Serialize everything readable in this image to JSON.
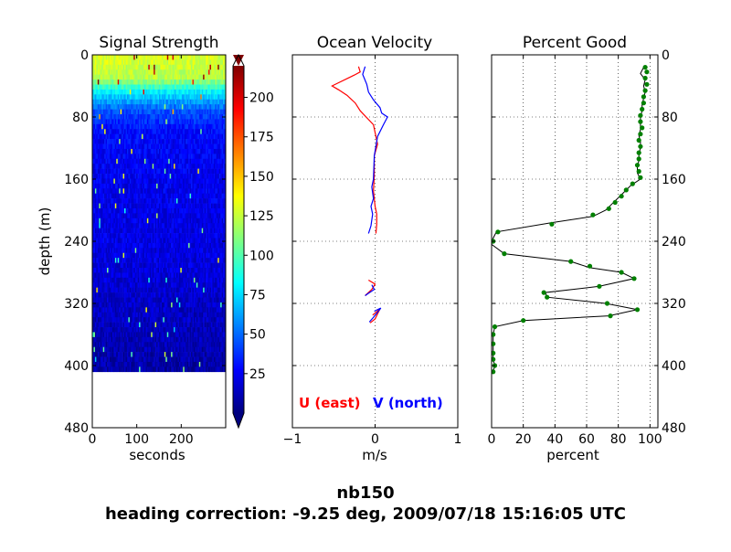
{
  "suptitle": {
    "line1": "nb150",
    "line2": "heading correction: -9.25 deg, 2009/07/18 15:16:05 UTC"
  },
  "chart_data": [
    {
      "type": "heatmap",
      "title": "Signal Strength",
      "xlabel": "seconds",
      "ylabel": "depth (m)",
      "xlim": [
        0,
        300
      ],
      "ylim": [
        480,
        0
      ],
      "xticks": [
        "0",
        "100",
        "200"
      ],
      "yticks": [
        "0",
        "80",
        "160",
        "240",
        "320",
        "400",
        "480"
      ],
      "data_depth_range": [
        0,
        408
      ],
      "colorbar": {
        "ticks": [
          "25",
          "50",
          "75",
          "100",
          "125",
          "150",
          "175",
          "200"
        ],
        "range": [
          0,
          220
        ],
        "colormap": "jet",
        "colors": [
          "#00007f",
          "#0000ff",
          "#0080ff",
          "#00ffff",
          "#80ff80",
          "#ffff00",
          "#ff8000",
          "#ff0000",
          "#7f0000"
        ]
      },
      "depth_profile": [
        {
          "depth": 8,
          "value": 128
        },
        {
          "depth": 30,
          "value": 122
        },
        {
          "depth": 48,
          "value": 80
        },
        {
          "depth": 72,
          "value": 45
        },
        {
          "depth": 100,
          "value": 28
        },
        {
          "depth": 160,
          "value": 24
        },
        {
          "depth": 260,
          "value": 21
        },
        {
          "depth": 340,
          "value": 14
        },
        {
          "depth": 408,
          "value": 8
        }
      ]
    },
    {
      "type": "line",
      "title": "Ocean Velocity",
      "xlabel": "m/s",
      "xlim": [
        -1,
        1
      ],
      "ylim": [
        480,
        0
      ],
      "xticks": [
        "−1",
        "0",
        "1"
      ],
      "grid": true,
      "legend_text": [
        {
          "label": "U (east)",
          "color": "#ff0000"
        },
        {
          "label": "V (north)",
          "color": "#0000ff"
        }
      ],
      "series": [
        {
          "name": "U (east)",
          "color": "#ff0000",
          "segments": [
            [
              [
                -0.2,
                15
              ],
              [
                -0.18,
                22
              ],
              [
                -0.25,
                26
              ],
              [
                -0.52,
                40
              ],
              [
                -0.44,
                45
              ],
              [
                -0.34,
                52
              ],
              [
                -0.24,
                62
              ],
              [
                -0.18,
                72
              ],
              [
                -0.02,
                90
              ],
              [
                0.01,
                105
              ],
              [
                0.03,
                115
              ],
              [
                -0.01,
                130
              ],
              [
                -0.01,
                155
              ],
              [
                -0.02,
                175
              ],
              [
                0.0,
                195
              ],
              [
                0.02,
                205
              ],
              [
                0.02,
                218
              ],
              [
                0.01,
                230
              ]
            ],
            [
              [
                -0.08,
                290
              ],
              [
                0.0,
                295
              ],
              [
                -0.04,
                302
              ],
              [
                -0.12,
                310
              ]
            ],
            [
              [
                -0.03,
                335
              ],
              [
                0.06,
                327
              ],
              [
                0.0,
                340
              ],
              [
                -0.06,
                345
              ]
            ]
          ]
        },
        {
          "name": "V (north)",
          "color": "#0000ff",
          "segments": [
            [
              [
                -0.12,
                15
              ],
              [
                -0.15,
                25
              ],
              [
                -0.1,
                38
              ],
              [
                -0.08,
                48
              ],
              [
                -0.02,
                58
              ],
              [
                0.06,
                68
              ],
              [
                0.08,
                75
              ],
              [
                0.15,
                80
              ],
              [
                0.1,
                90
              ],
              [
                0.03,
                105
              ],
              [
                -0.01,
                130
              ],
              [
                -0.02,
                160
              ],
              [
                -0.04,
                170
              ],
              [
                -0.02,
                185
              ],
              [
                -0.05,
                195
              ],
              [
                -0.03,
                205
              ],
              [
                -0.05,
                220
              ],
              [
                -0.08,
                230
              ]
            ],
            [
              [
                -0.04,
                296
              ],
              [
                -0.01,
                302
              ],
              [
                -0.08,
                307
              ],
              [
                -0.12,
                310
              ]
            ],
            [
              [
                -0.01,
                330
              ],
              [
                0.07,
                326
              ],
              [
                -0.02,
                338
              ],
              [
                -0.07,
                344
              ]
            ]
          ]
        }
      ]
    },
    {
      "type": "line",
      "title": "Percent Good",
      "xlabel": "percent",
      "xlim": [
        0,
        105
      ],
      "ylim": [
        480,
        0
      ],
      "xticks": [
        "0",
        "20",
        "40",
        "60",
        "80",
        "100"
      ],
      "yticks": [
        "0",
        "80",
        "160",
        "240",
        "320",
        "400",
        "480"
      ],
      "grid": true,
      "series": [
        {
          "name": "",
          "color": "#000000",
          "points": [
            [
              96,
              16
            ],
            [
              94,
              24
            ],
            [
              97,
              32
            ],
            [
              96,
              40
            ],
            [
              97,
              48
            ],
            [
              96,
              56
            ],
            [
              95,
              64
            ],
            [
              95,
              72
            ],
            [
              94,
              80
            ],
            [
              94,
              88
            ],
            [
              94,
              96
            ],
            [
              93,
              104
            ],
            [
              94,
              112
            ],
            [
              94,
              120
            ],
            [
              93,
              128
            ],
            [
              93,
              136
            ],
            [
              92,
              144
            ],
            [
              92,
              152
            ],
            [
              94,
              160
            ],
            [
              88,
              168
            ],
            [
              84,
              176
            ],
            [
              80,
              184
            ],
            [
              76,
              192
            ],
            [
              72,
              200
            ],
            [
              64,
              208
            ],
            [
              38,
              216
            ],
            [
              3,
              228
            ],
            [
              1,
              236
            ],
            [
              0,
              244
            ],
            [
              8,
              256
            ],
            [
              50,
              266
            ],
            [
              62,
              274
            ],
            [
              82,
              280
            ],
            [
              90,
              288
            ],
            [
              68,
              298
            ],
            [
              34,
              306
            ],
            [
              35,
              312
            ],
            [
              72,
              320
            ],
            [
              92,
              328
            ],
            [
              74,
              336
            ],
            [
              20,
              342
            ],
            [
              2,
              350
            ],
            [
              1,
              360
            ],
            [
              1,
              372
            ],
            [
              1,
              384
            ],
            [
              1,
              392
            ],
            [
              2,
              400
            ],
            [
              1,
              408
            ]
          ]
        }
      ],
      "markers": {
        "color": "#008000",
        "points": [
          [
            97,
            16
          ],
          [
            98,
            22
          ],
          [
            97,
            30
          ],
          [
            98,
            38
          ],
          [
            97,
            46
          ],
          [
            96,
            54
          ],
          [
            96,
            62
          ],
          [
            95,
            70
          ],
          [
            94,
            78
          ],
          [
            94,
            86
          ],
          [
            95,
            94
          ],
          [
            94,
            102
          ],
          [
            93,
            110
          ],
          [
            94,
            118
          ],
          [
            93,
            126
          ],
          [
            93,
            134
          ],
          [
            92,
            142
          ],
          [
            93,
            150
          ],
          [
            94,
            158
          ],
          [
            89,
            166
          ],
          [
            85,
            174
          ],
          [
            82,
            182
          ],
          [
            78,
            190
          ],
          [
            74,
            198
          ],
          [
            64,
            206
          ],
          [
            38,
            218
          ],
          [
            4,
            228
          ],
          [
            1,
            240
          ],
          [
            8,
            256
          ],
          [
            50,
            266
          ],
          [
            62,
            272
          ],
          [
            82,
            280
          ],
          [
            90,
            288
          ],
          [
            68,
            298
          ],
          [
            33,
            306
          ],
          [
            35,
            312
          ],
          [
            73,
            320
          ],
          [
            92,
            328
          ],
          [
            75,
            336
          ],
          [
            20,
            342
          ],
          [
            2,
            350
          ],
          [
            1,
            360
          ],
          [
            1,
            372
          ],
          [
            1,
            384
          ],
          [
            1,
            392
          ],
          [
            2,
            400
          ],
          [
            1,
            408
          ]
        ]
      }
    }
  ]
}
